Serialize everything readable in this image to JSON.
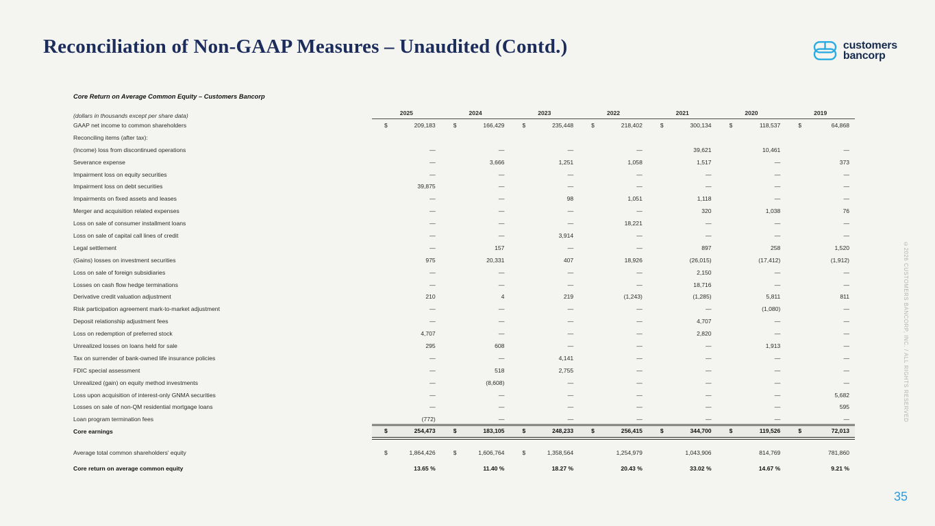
{
  "page": {
    "title": "Reconciliation of Non-GAAP Measures – Unaudited (Contd.)",
    "page_number": "35",
    "copyright": "©2026 CUSTOMERS BANCORP, INC. / ALL RIGHTS RESERVED"
  },
  "logo": {
    "line1": "customers",
    "line2": "bancorp",
    "icon_color": "#29ABE2",
    "text_color": "#152a4e"
  },
  "colors": {
    "background": "#f4f4f1",
    "title_navy": "#1c2c5b",
    "accent_blue": "#2d9cdb"
  },
  "table": {
    "title": "Core Return on Average Common Equity – Customers Bancorp",
    "note": "(dollars in thousands except per share data)",
    "years": [
      "2025",
      "2024",
      "2023",
      "2022",
      "2021",
      "2020",
      "2019"
    ],
    "rows": [
      {
        "label": "GAAP net income to common shareholders",
        "cells": [
          "209,183",
          "166,429",
          "235,448",
          "218,402",
          "300,134",
          "118,537",
          "64,868"
        ],
        "dollars": [
          1,
          1,
          1,
          1,
          1,
          1,
          1
        ]
      },
      {
        "label": "Reconciling items (after tax):",
        "cells": [
          "",
          "",
          "",
          "",
          "",
          "",
          ""
        ]
      },
      {
        "label": "(Income) loss from discontinued operations",
        "cells": [
          "—",
          "—",
          "—",
          "—",
          "39,621",
          "10,461",
          "—"
        ]
      },
      {
        "label": "Severance expense",
        "cells": [
          "—",
          "3,666",
          "1,251",
          "1,058",
          "1,517",
          "—",
          "373"
        ]
      },
      {
        "label": "Impairment loss on equity securities",
        "cells": [
          "—",
          "—",
          "—",
          "—",
          "—",
          "—",
          "—"
        ]
      },
      {
        "label": "Impairment loss on debt securities",
        "cells": [
          "39,875",
          "—",
          "—",
          "—",
          "—",
          "—",
          "—"
        ]
      },
      {
        "label": "Impairments on fixed assets and leases",
        "cells": [
          "—",
          "—",
          "98",
          "1,051",
          "1,118",
          "—",
          "—"
        ]
      },
      {
        "label": "Merger and acquisition related expenses",
        "cells": [
          "—",
          "—",
          "—",
          "—",
          "320",
          "1,038",
          "76"
        ]
      },
      {
        "label": "Loss on sale of consumer installment loans",
        "cells": [
          "—",
          "—",
          "—",
          "18,221",
          "—",
          "—",
          "—"
        ]
      },
      {
        "label": "Loss on sale of capital call lines of credit",
        "cells": [
          "—",
          "—",
          "3,914",
          "—",
          "—",
          "—",
          "—"
        ]
      },
      {
        "label": "Legal settlement",
        "cells": [
          "—",
          "157",
          "—",
          "—",
          "897",
          "258",
          "1,520"
        ]
      },
      {
        "label": "(Gains) losses on investment securities",
        "cells": [
          "975",
          "20,331",
          "407",
          "18,926",
          "(26,015)",
          "(17,412)",
          "(1,912)"
        ]
      },
      {
        "label": "Loss on sale of foreign subsidiaries",
        "cells": [
          "—",
          "—",
          "—",
          "—",
          "2,150",
          "—",
          "—"
        ]
      },
      {
        "label": "Losses on cash flow hedge terminations",
        "cells": [
          "—",
          "—",
          "—",
          "—",
          "18,716",
          "—",
          "—"
        ]
      },
      {
        "label": "Derivative credit valuation adjustment",
        "cells": [
          "210",
          "4",
          "219",
          "(1,243)",
          "(1,285)",
          "5,811",
          "811"
        ]
      },
      {
        "label": "Risk participation agreement mark-to-market adjustment",
        "cells": [
          "—",
          "—",
          "—",
          "—",
          "—",
          "(1,080)",
          "—"
        ]
      },
      {
        "label": "Deposit relationship adjustment fees",
        "cells": [
          "—",
          "—",
          "—",
          "—",
          "4,707",
          "—",
          "—"
        ]
      },
      {
        "label": "Loss on redemption of preferred stock",
        "cells": [
          "4,707",
          "—",
          "—",
          "—",
          "2,820",
          "—",
          "—"
        ]
      },
      {
        "label": "Unrealized losses on loans held for sale",
        "cells": [
          "295",
          "608",
          "—",
          "—",
          "—",
          "1,913",
          "—"
        ]
      },
      {
        "label": "Tax on surrender of bank-owned life insurance policies",
        "cells": [
          "—",
          "—",
          "4,141",
          "—",
          "—",
          "—",
          "—"
        ]
      },
      {
        "label": "FDIC special assessment",
        "cells": [
          "—",
          "518",
          "2,755",
          "—",
          "—",
          "—",
          "—"
        ]
      },
      {
        "label": "Unrealized (gain) on equity method investments",
        "cells": [
          "—",
          "(8,608)",
          "—",
          "—",
          "—",
          "—",
          "—"
        ]
      },
      {
        "label": "Loss upon acquisition of interest-only GNMA securities",
        "cells": [
          "—",
          "—",
          "—",
          "—",
          "—",
          "—",
          "5,682"
        ]
      },
      {
        "label": "Losses on sale of non-QM residential mortgage loans",
        "cells": [
          "—",
          "—",
          "—",
          "—",
          "—",
          "—",
          "595"
        ]
      },
      {
        "label": "Loan program termination fees",
        "cells": [
          "(772)",
          "—",
          "—",
          "—",
          "—",
          "—",
          "—"
        ],
        "rule_below": true
      },
      {
        "label": "Core earnings",
        "cells": [
          "254,473",
          "183,105",
          "248,233",
          "256,415",
          "344,700",
          "119,526",
          "72,013"
        ],
        "dollars": [
          1,
          1,
          1,
          1,
          1,
          1,
          1
        ],
        "bold": true,
        "double_rule": true
      },
      {
        "label": "Average total common shareholders' equity",
        "cells": [
          "1,864,426",
          "1,606,764",
          "1,358,564",
          "1,254,979",
          "1,043,906",
          "814,769",
          "781,860"
        ],
        "dollars": [
          1,
          1,
          1,
          0,
          0,
          0,
          0
        ],
        "gap_before": true
      },
      {
        "label": "Core return on average common equity",
        "cells": [
          "13.65 %",
          "11.40 %",
          "18.27 %",
          "20.43 %",
          "33.02 %",
          "14.67 %",
          "9.21 %"
        ],
        "bold": true,
        "gap_before_sm": true
      }
    ]
  }
}
